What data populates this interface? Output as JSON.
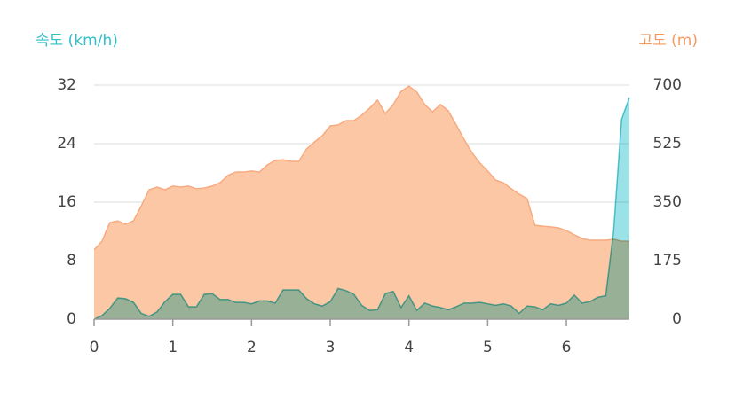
{
  "chart_data": {
    "type": "area",
    "y_label": "속도 (km/h)",
    "y2_label": "고도 (m)",
    "x": [
      0,
      0.1,
      0.2,
      0.3,
      0.4,
      0.5,
      0.6,
      0.7,
      0.8,
      0.9,
      1,
      1.1,
      1.2,
      1.3,
      1.4,
      1.5,
      1.6,
      1.7,
      1.8,
      1.9,
      2,
      2.1,
      2.2,
      2.3,
      2.4,
      2.5,
      2.6,
      2.7,
      2.8,
      2.9,
      3,
      3.1,
      3.2,
      3.3,
      3.4,
      3.5,
      3.6,
      3.7,
      3.8,
      3.9,
      4,
      4.1,
      4.2,
      4.3,
      4.4,
      4.5,
      4.6,
      4.7,
      4.8,
      4.9,
      5,
      5.1,
      5.2,
      5.3,
      5.4,
      5.5,
      5.6,
      5.7,
      5.8,
      5.9,
      6,
      6.1,
      6.2,
      6.3,
      6.4,
      6.5,
      6.6,
      6.7,
      6.8
    ],
    "series": [
      {
        "name": "고도",
        "axis": "y2",
        "color": "#fcc7a5",
        "line_color": "#f7ab80",
        "values": [
          207,
          233,
          289,
          294,
          284,
          294,
          339,
          387,
          395,
          387,
          398,
          395,
          398,
          390,
          392,
          398,
          408,
          430,
          440,
          440,
          443,
          440,
          461,
          475,
          477,
          472,
          472,
          509,
          530,
          549,
          578,
          581,
          594,
          594,
          610,
          631,
          655,
          615,
          642,
          681,
          697,
          679,
          642,
          620,
          642,
          623,
          581,
          538,
          498,
          467,
          443,
          416,
          408,
          390,
          374,
          361,
          281,
          278,
          276,
          273,
          265,
          252,
          241,
          236,
          236,
          236,
          239,
          233,
          233
        ]
      },
      {
        "name": "속도",
        "axis": "y",
        "color": "#8fdfe5",
        "line_color": "#5ccbd5",
        "values": [
          0,
          0.5,
          1.5,
          2.9,
          2.8,
          2.3,
          0.8,
          0.4,
          1,
          2.4,
          3.4,
          3.4,
          1.7,
          1.7,
          3.4,
          3.5,
          2.7,
          2.7,
          2.3,
          2.3,
          2.1,
          2.5,
          2.5,
          2.2,
          4,
          4,
          4,
          2.8,
          2.1,
          1.8,
          2.4,
          4.2,
          3.9,
          3.4,
          1.9,
          1.2,
          1.3,
          3.5,
          3.8,
          1.6,
          3.2,
          1.2,
          2.2,
          1.8,
          1.6,
          1.3,
          1.7,
          2.2,
          2.2,
          2.3,
          2.1,
          1.9,
          2.1,
          1.8,
          0.8,
          1.8,
          1.7,
          1.3,
          2.1,
          1.9,
          2.2,
          3.3,
          2.2,
          2.4,
          3,
          3.2,
          12.1,
          27.3,
          30.3
        ]
      }
    ],
    "xlim": [
      0,
      6.8
    ],
    "xticks": [
      0,
      1,
      2,
      3,
      4,
      5,
      6
    ],
    "ylim": [
      0,
      32
    ],
    "yticks": [
      0,
      8,
      16,
      24,
      32
    ],
    "y2lim": [
      0,
      700
    ],
    "y2ticks": [
      0,
      175,
      350,
      525,
      700
    ],
    "grid": true
  }
}
